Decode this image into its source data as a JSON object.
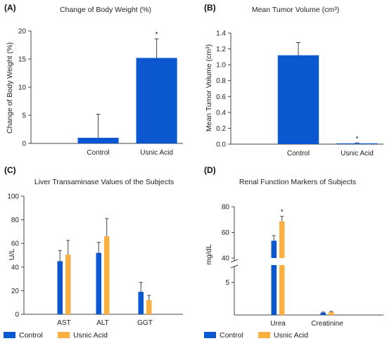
{
  "chart_data": [
    {
      "panel": "(A)",
      "type": "bar",
      "title": "Change of Body Weight (%)",
      "ylabel": "Change of Body Weight (%)",
      "xlabel": "",
      "categories": [
        "Control",
        "Usnic Acid"
      ],
      "values": [
        1.0,
        15.2
      ],
      "errors": [
        4.2,
        3.4
      ],
      "significance": [
        "",
        "*"
      ],
      "ylim": [
        0,
        20
      ],
      "yticks": [
        "0",
        "5",
        "10",
        "15",
        "20"
      ],
      "colors": [
        "#0b57d0",
        "#0b57d0"
      ]
    },
    {
      "panel": "(B)",
      "type": "bar",
      "title": "Mean Tumor Volume (cm³)",
      "ylabel": "Mean Tumor Volume (cm³)",
      "xlabel": "",
      "categories": [
        "Control",
        "Usnic Acid"
      ],
      "values": [
        1.12,
        0.01
      ],
      "errors": [
        0.16,
        0.005
      ],
      "significance": [
        "",
        "*"
      ],
      "ylim": [
        0,
        1.4
      ],
      "yticks": [
        "0.0",
        "0.2",
        "0.4",
        "0.6",
        "0.8",
        "1.0",
        "1.2",
        "1.4"
      ],
      "colors": [
        "#0b57d0",
        "#0b57d0"
      ]
    },
    {
      "panel": "(C)",
      "type": "bar",
      "title": "Liver Transaminase Values of the Subjects",
      "ylabel": "U/L",
      "xlabel": "",
      "categories": [
        "AST",
        "ALT",
        "GGT"
      ],
      "series": [
        {
          "name": "Control",
          "color": "#0b57d0",
          "values": [
            45,
            52,
            19
          ],
          "errors": [
            9,
            9,
            8
          ]
        },
        {
          "name": "Usnic Acid",
          "color": "#f9b040",
          "values": [
            50.5,
            66,
            12
          ],
          "errors": [
            12,
            15,
            4
          ]
        }
      ],
      "ylim": [
        0,
        100
      ],
      "yticks": [
        "0",
        "20",
        "40",
        "60",
        "80",
        "100"
      ],
      "legend": "bottom-left"
    },
    {
      "panel": "(D)",
      "type": "bar",
      "title": "Renal Function Markers of Subjects",
      "ylabel": "mg/dL",
      "xlabel": "",
      "categories": [
        "Urea",
        "Creatinine"
      ],
      "series": [
        {
          "name": "Control",
          "color": "#0b57d0",
          "values": [
            53.5,
            0.35
          ],
          "errors": [
            4,
            0.1
          ]
        },
        {
          "name": "Usnic Acid",
          "color": "#f9b040",
          "values": [
            68.5,
            0.45
          ],
          "errors": [
            4,
            0.1
          ]
        }
      ],
      "significance": [
        "*",
        ""
      ],
      "y_axis_break": {
        "lower": [
          0,
          7
        ],
        "upper": [
          40,
          80
        ]
      },
      "yticks": [
        "5",
        "40",
        "60",
        "80"
      ],
      "legend": "bottom-left"
    }
  ]
}
